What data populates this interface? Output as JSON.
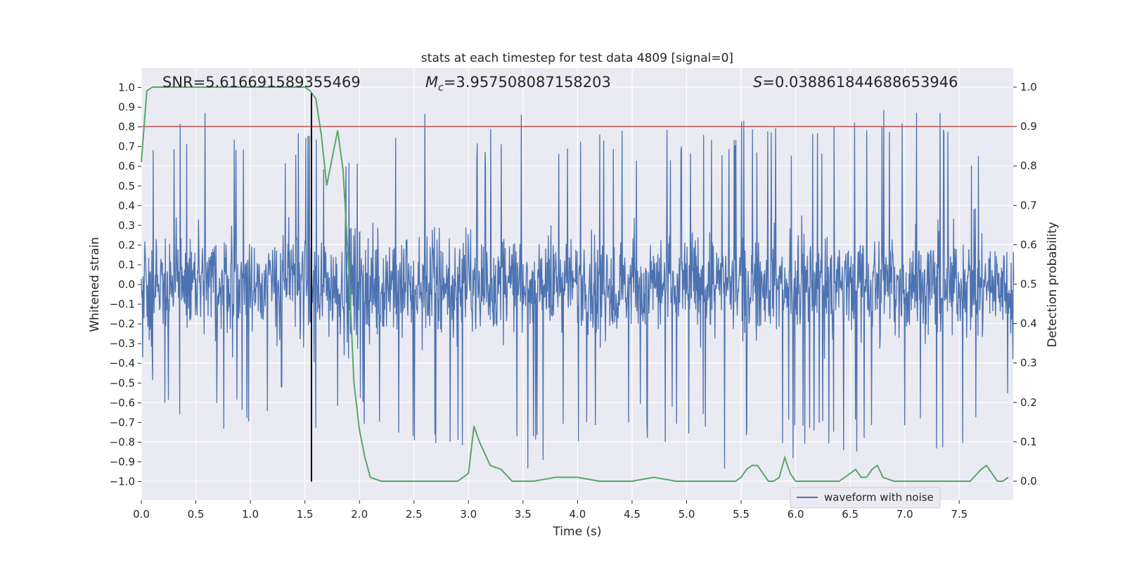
{
  "chart_data": {
    "type": "line",
    "title": "stats at each timestep for test data 4809 [signal=0]",
    "xlabel": "Time (s)",
    "ylabel": "Whitened strain",
    "ylabel_right": "Detection probability",
    "xlim": [
      0.0,
      8.0
    ],
    "ylim": [
      -1.1,
      1.1
    ],
    "ylim_right": [
      -0.05,
      1.05
    ],
    "xticks": [
      "0.0",
      "0.5",
      "1.0",
      "1.5",
      "2.0",
      "2.5",
      "3.0",
      "3.5",
      "4.0",
      "4.5",
      "5.0",
      "5.5",
      "6.0",
      "6.5",
      "7.0",
      "7.5"
    ],
    "yticks": [
      "1.0",
      "0.9",
      "0.8",
      "0.7",
      "0.6",
      "0.5",
      "0.4",
      "0.3",
      "0.2",
      "0.1",
      "0.0",
      "−0.1",
      "−0.2",
      "−0.3",
      "−0.4",
      "−0.5",
      "−0.6",
      "−0.7",
      "−0.8",
      "−0.9",
      "−1.0"
    ],
    "yticks_right": [
      "1.0",
      "0.9",
      "0.8",
      "0.7",
      "0.6",
      "0.5",
      "0.4",
      "0.3",
      "0.2",
      "0.1",
      "0.0"
    ],
    "annotations": {
      "snr": "SNR=5.616691589355469",
      "mc_symbol": "M",
      "mc_subscript": "c",
      "mc_value": "=3.957508087158203",
      "s_symbol": "S",
      "s_value": "=0.038861844688653946"
    },
    "threshold_line": {
      "y_right": 0.9,
      "color": "#c44e52"
    },
    "vertical_marker": {
      "x": 1.56,
      "color": "#000000"
    },
    "grid": true,
    "legend": {
      "placement": "lower-right",
      "label": "waveform with noise"
    },
    "series": [
      {
        "name": "waveform with noise",
        "axis": "left",
        "color": "#4c72b0",
        "kind": "noise",
        "envelope": {
          "x": [
            0.0,
            0.2,
            0.5,
            0.8,
            1.0,
            1.3,
            1.5,
            2.0,
            2.5,
            3.0,
            3.5,
            4.0,
            4.5,
            5.0,
            5.5,
            6.0,
            6.5,
            7.0,
            7.5,
            7.95
          ],
          "max": [
            0.8,
            0.72,
            0.98,
            0.8,
            0.83,
            0.82,
            0.78,
            0.74,
            0.93,
            0.74,
            0.87,
            0.8,
            0.78,
            0.81,
            0.83,
            0.84,
            0.83,
            0.97,
            0.86,
            0.6
          ],
          "min": [
            -0.45,
            -0.69,
            -0.67,
            -0.79,
            -0.7,
            -0.63,
            -0.75,
            -0.72,
            -0.8,
            -0.84,
            -0.96,
            -0.93,
            -0.8,
            -0.82,
            -0.99,
            -0.88,
            -0.86,
            -0.82,
            -0.91,
            -0.62
          ]
        }
      },
      {
        "name": "",
        "axis": "right",
        "color": "#55a868",
        "x": [
          0.0,
          0.05,
          0.1,
          0.2,
          0.3,
          0.5,
          0.8,
          1.0,
          1.3,
          1.5,
          1.55,
          1.6,
          1.65,
          1.7,
          1.75,
          1.8,
          1.85,
          1.9,
          1.95,
          2.0,
          2.05,
          2.1,
          2.2,
          2.3,
          2.4,
          2.5,
          2.6,
          2.7,
          2.8,
          2.9,
          3.0,
          3.05,
          3.1,
          3.2,
          3.3,
          3.4,
          3.5,
          3.6,
          3.8,
          4.0,
          4.2,
          4.5,
          4.7,
          4.9,
          5.2,
          5.45,
          5.5,
          5.55,
          5.6,
          5.65,
          5.7,
          5.75,
          5.8,
          5.85,
          5.9,
          5.95,
          6.0,
          6.1,
          6.2,
          6.3,
          6.4,
          6.5,
          6.55,
          6.6,
          6.65,
          6.7,
          6.75,
          6.8,
          6.9,
          7.0,
          7.2,
          7.4,
          7.6,
          7.7,
          7.75,
          7.8,
          7.85,
          7.9,
          7.95
        ],
        "values": [
          0.81,
          0.99,
          1.0,
          1.0,
          1.0,
          1.0,
          1.0,
          1.0,
          1.0,
          1.0,
          0.99,
          0.97,
          0.88,
          0.75,
          0.82,
          0.89,
          0.79,
          0.55,
          0.25,
          0.13,
          0.06,
          0.01,
          0.0,
          0.0,
          0.0,
          0.0,
          0.0,
          0.0,
          0.0,
          0.0,
          0.02,
          0.14,
          0.1,
          0.04,
          0.03,
          0.0,
          0.0,
          0.0,
          0.01,
          0.01,
          0.0,
          0.0,
          0.01,
          0.0,
          0.0,
          0.0,
          0.01,
          0.03,
          0.04,
          0.04,
          0.02,
          0.0,
          0.0,
          0.01,
          0.06,
          0.02,
          0.0,
          0.0,
          0.0,
          0.0,
          0.0,
          0.02,
          0.03,
          0.01,
          0.01,
          0.03,
          0.04,
          0.01,
          0.0,
          0.0,
          0.0,
          0.0,
          0.0,
          0.03,
          0.04,
          0.02,
          0.0,
          0.0,
          0.01
        ]
      }
    ]
  }
}
